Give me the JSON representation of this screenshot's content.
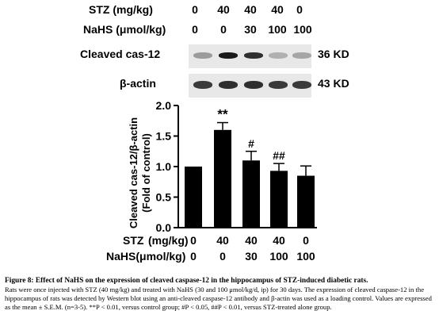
{
  "header_rows": [
    {
      "label": "STZ (mg/kg)",
      "values": [
        "0",
        "40",
        "40",
        "40",
        "0"
      ]
    },
    {
      "label": "NaHS (μmol/kg)",
      "values": [
        "0",
        "0",
        "30",
        "100",
        "100"
      ]
    }
  ],
  "blots": [
    {
      "name": "Cleaved cas-12",
      "kd": "36 KD",
      "intensities": [
        0.35,
        0.95,
        0.85,
        0.25,
        0.3
      ]
    },
    {
      "name": "β-actin",
      "kd": "43 KD",
      "intensities": [
        0.8,
        0.85,
        0.85,
        0.8,
        0.8
      ]
    }
  ],
  "chart_data": {
    "type": "bar",
    "categories": [
      "1",
      "2",
      "3",
      "4",
      "5"
    ],
    "values": [
      1.0,
      1.6,
      1.1,
      0.93,
      0.85
    ],
    "errors": [
      0.0,
      0.12,
      0.15,
      0.12,
      0.16
    ],
    "annotations": [
      "",
      "**",
      "#",
      "##",
      ""
    ],
    "ylabel_line1": "Cleaved cas-12/β-actin",
    "ylabel_line2": "(Fold of control)",
    "ylim": [
      0,
      2.0
    ],
    "yticks": [
      "0.0",
      "0.5",
      "1.0",
      "1.5",
      "2.0"
    ],
    "bar_color": "#000000",
    "grid": false,
    "x_rows": [
      {
        "label": "STZ",
        "unit": "(mg/kg)",
        "values": [
          "0",
          "40",
          "40",
          "40",
          "0"
        ]
      },
      {
        "label": "NaHS(μmol/kg)",
        "unit": "",
        "values": [
          "0",
          "0",
          "30",
          "100",
          "100"
        ]
      }
    ]
  },
  "caption": {
    "title": "Figure 8: Effect of NaHS on the expression of cleaved caspase-12 in the hippocampus of STZ-induced diabetic rats.",
    "text": "Rats were once injected with STZ (40 mg/kg) and treated with NaHS (30 and 100 μmol/kg/d, ip) for 30 days. The expression of cleaved caspase-12 in the hippocampus of rats was detected by Western blot using an anti-cleaved caspase-12 antibody and β-actin was used as a loading control. Values are expressed as the mean ± S.E.M. (n=3-5). **P < 0.01, versus control group; #P < 0.05, ##P < 0.01, versus STZ-treated alone group."
  }
}
